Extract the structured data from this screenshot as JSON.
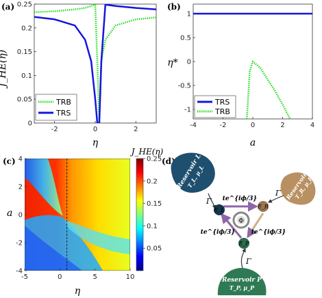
{
  "panels": {
    "a": {
      "label": "(a)",
      "xlabel": "η",
      "ylabel": "J_HE(η)"
    },
    "b": {
      "label": "(b)",
      "xlabel": "a",
      "ylabel": "η*"
    },
    "c": {
      "label": "(c)",
      "xlabel": "η",
      "ylabel": "a",
      "colorbar_title": "J_HE(η)"
    },
    "d": {
      "label": "(d)"
    }
  },
  "chart_data": [
    {
      "panel": "a",
      "type": "line",
      "xlim": [
        -3,
        3
      ],
      "ylim": [
        0,
        0.25
      ],
      "xticks": [
        "-2",
        "0",
        "2"
      ],
      "yticks": [
        "0",
        "0.05",
        "0.1",
        "0.15",
        "0.2",
        "0.25"
      ],
      "legend_position": "bottom-left",
      "series": [
        {
          "name": "TRB",
          "style": "dotted",
          "color": "#22dd22",
          "x": [
            -3,
            -2,
            -1,
            -0.5,
            -0.2,
            0,
            0.1,
            0.2,
            0.3,
            0.5,
            1,
            2,
            3
          ],
          "y": [
            0.233,
            0.235,
            0.239,
            0.242,
            0.246,
            0.249,
            0.13,
            0.0,
            0.13,
            0.175,
            0.205,
            0.218,
            0.222
          ]
        },
        {
          "name": "TRS",
          "style": "solid",
          "color": "#1515dd",
          "x": [
            -3,
            -2,
            -1,
            -0.5,
            -0.2,
            0,
            0.1,
            0.2,
            0.3,
            0.5,
            1,
            2,
            3
          ],
          "y": [
            0.223,
            0.218,
            0.205,
            0.175,
            0.13,
            0.05,
            0.0,
            0.0,
            0.13,
            0.249,
            0.246,
            0.242,
            0.239
          ]
        }
      ]
    },
    {
      "panel": "b",
      "type": "line",
      "xlim": [
        -4,
        4
      ],
      "ylim": [
        -1.2,
        1.2
      ],
      "xticks": [
        "-4",
        "-2",
        "0",
        "2",
        "4"
      ],
      "yticks": [
        "-1",
        "-0.5",
        "0",
        "0.5",
        "1"
      ],
      "legend_position": "bottom-left",
      "series": [
        {
          "name": "TRS",
          "style": "solid",
          "color": "#1515dd",
          "x": [
            -4,
            4
          ],
          "y": [
            1,
            1
          ]
        },
        {
          "name": "TRB",
          "style": "dotted",
          "color": "#22dd22",
          "x": [
            -0.4,
            -0.2,
            0,
            0.5,
            1,
            1.5,
            2,
            2.5
          ],
          "y": [
            -1.2,
            -0.2,
            0,
            -0.13,
            -0.38,
            -0.62,
            -0.9,
            -1.2
          ]
        }
      ]
    },
    {
      "panel": "c",
      "type": "heatmap",
      "xlim": [
        -5,
        10
      ],
      "ylim": [
        -4,
        4
      ],
      "xticks": [
        "-5",
        "0",
        "5",
        "10"
      ],
      "yticks": [
        "-4",
        "-2",
        "0",
        "2",
        "4"
      ],
      "colorbar_range": [
        0,
        0.25
      ],
      "colorbar_ticks": [
        "0.05",
        "0.1",
        "0.15",
        "0.2",
        "0.25"
      ],
      "dashed_line_x": 1
    }
  ],
  "diagram": {
    "reservoir_L": {
      "name": "Reservoir L",
      "params": "T_L, μ_L",
      "color": "#1e4f6e"
    },
    "reservoir_R": {
      "name": "Reservoir R",
      "params": "T_R, μ_R",
      "color": "#b89062"
    },
    "reservoir_P": {
      "name": "Reservoir P",
      "params": "T_P, μ_P",
      "color": "#2f7a55"
    },
    "dots": {
      "L": "E_L",
      "R": "E_R",
      "P": "E_P"
    },
    "couplings": [
      "Γ",
      "Γ",
      "Γ"
    ],
    "hop_LR": "te^{iϕ/3}",
    "hop_PL": "te^{iϕ/3}",
    "hop_RP": "te^{iϕ/3}",
    "flux": "Φ"
  }
}
